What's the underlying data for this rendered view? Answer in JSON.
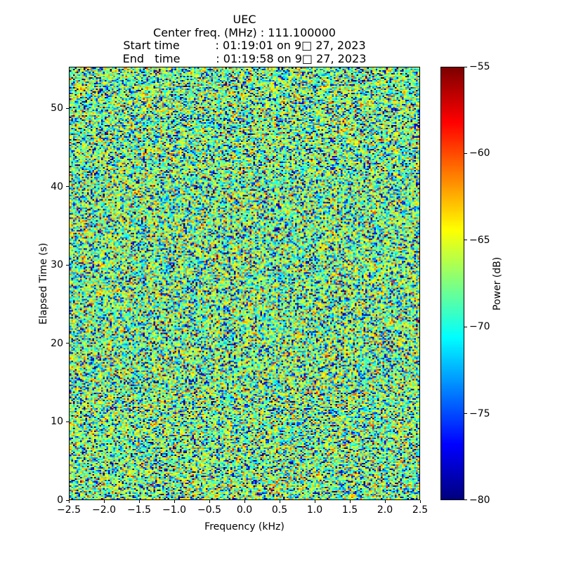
{
  "chart_data": {
    "type": "heatmap",
    "title": "UEC",
    "header_lines": [
      "UEC",
      "Center freq. (MHz) : 111.100000",
      "Start time          : 01:19:01 on 9□ 27, 2023",
      "End   time          : 01:19:58 on 9□ 27, 2023"
    ],
    "xlabel": "Frequency (kHz)",
    "ylabel": "Elapsed Time (s)",
    "xlim": [
      -2.5,
      2.5
    ],
    "ylim": [
      0,
      55.3
    ],
    "xticks": [
      {
        "value": -2.5,
        "label": "−2.5"
      },
      {
        "value": -2.0,
        "label": "−2.0"
      },
      {
        "value": -1.5,
        "label": "−1.5"
      },
      {
        "value": -1.0,
        "label": "−1.0"
      },
      {
        "value": -0.5,
        "label": "−0.5"
      },
      {
        "value": 0.0,
        "label": "0.0"
      },
      {
        "value": 0.5,
        "label": "0.5"
      },
      {
        "value": 1.0,
        "label": "1.0"
      },
      {
        "value": 1.5,
        "label": "1.5"
      },
      {
        "value": 2.0,
        "label": "2.0"
      },
      {
        "value": 2.5,
        "label": "2.5"
      }
    ],
    "yticks": [
      {
        "value": 0,
        "label": "0"
      },
      {
        "value": 10,
        "label": "10"
      },
      {
        "value": 20,
        "label": "20"
      },
      {
        "value": 30,
        "label": "30"
      },
      {
        "value": 40,
        "label": "40"
      },
      {
        "value": 50,
        "label": "50"
      }
    ],
    "colorbar": {
      "label": "Power (dB)",
      "vmin": -80,
      "vmax": -55,
      "colormap": "jet",
      "ticks": [
        {
          "value": -55,
          "label": "−55"
        },
        {
          "value": -60,
          "label": "−60"
        },
        {
          "value": -65,
          "label": "−65"
        },
        {
          "value": -70,
          "label": "−70"
        },
        {
          "value": -75,
          "label": "−75"
        },
        {
          "value": -80,
          "label": "−80"
        }
      ]
    },
    "noise": {
      "description": "broadband noise floor, no visible signal",
      "seed": 20230927,
      "cols": 200,
      "rows": 308,
      "base_db": -66.3,
      "distribution": "exponential-power"
    }
  },
  "colors": {
    "background": "#ffffff",
    "text": "#000000",
    "spine": "#000000"
  }
}
